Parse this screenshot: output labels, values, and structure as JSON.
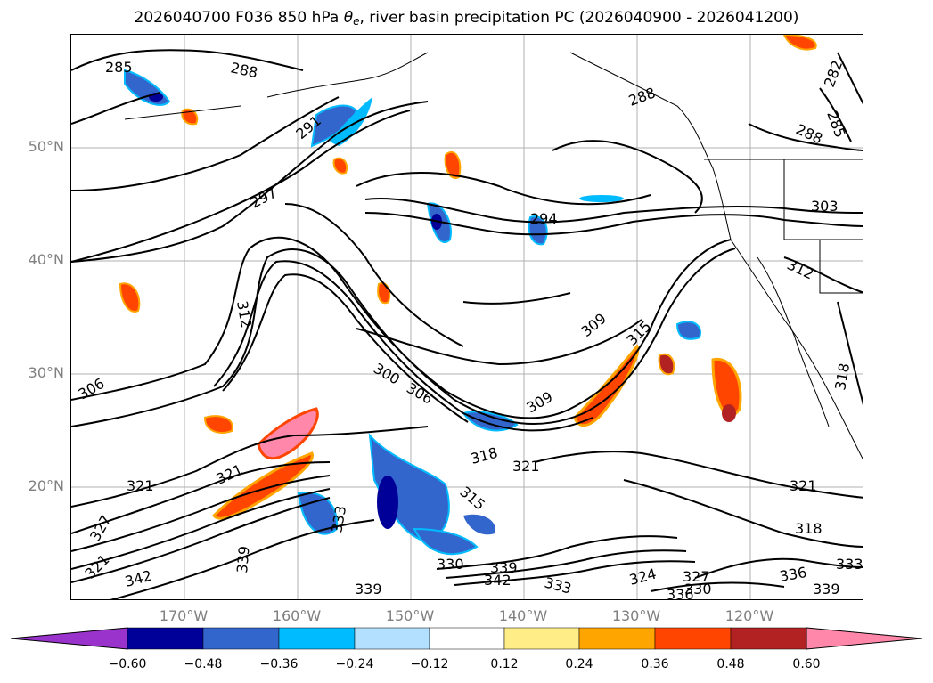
{
  "title": {
    "prefix": "2026040700 F036 850 hPa ",
    "theta": "θ",
    "theta_sub": "e",
    "suffix": ", river basin precipitation PC (2026040900 - 2026041200)"
  },
  "latitude_labels": [
    "50°N",
    "40°N",
    "30°N",
    "20°N"
  ],
  "longitude_labels": [
    "170°W",
    "160°W",
    "150°W",
    "140°W",
    "130°W",
    "120°W"
  ],
  "contour_labels": [
    "285",
    "288",
    "291",
    "297",
    "294",
    "288",
    "282",
    "285",
    "288",
    "303",
    "312",
    "312",
    "309",
    "315",
    "300",
    "306",
    "309",
    "306",
    "318",
    "318",
    "321",
    "315",
    "321",
    "321",
    "321",
    "327",
    "333",
    "339",
    "342",
    "339",
    "330",
    "339",
    "342",
    "333",
    "324",
    "327",
    "330",
    "336",
    "336",
    "339",
    "333",
    "321",
    "318"
  ],
  "colorbar": {
    "ticks": [
      "−0.60",
      "−0.48",
      "−0.36",
      "−0.24",
      "−0.12",
      "0.12",
      "0.24",
      "0.36",
      "0.48",
      "0.60"
    ],
    "colors": [
      "#9933cc",
      "#000099",
      "#3366cc",
      "#00bbff",
      "#b3e0ff",
      "#ffffff",
      "#ffee88",
      "#ffa500",
      "#ff4500",
      "#b22222",
      "#ff88aa",
      "#ff88aa"
    ]
  }
}
